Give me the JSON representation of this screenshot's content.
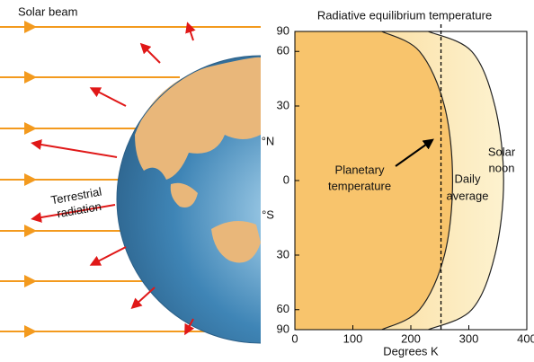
{
  "left": {
    "solar_beam": "Solar beam",
    "terrestrial_radiation": [
      "Terrestrial",
      "radiation"
    ]
  },
  "chart_data": {
    "type": "area",
    "title": "Radiative equilibrium temperature",
    "xlabel": "Degrees K",
    "north_label": "°N",
    "south_label": "°S",
    "yscale": "sine",
    "latitude": [
      90,
      60,
      30,
      0,
      -30,
      -60,
      -90
    ],
    "xlim": [
      0,
      400
    ],
    "xticks": [
      0,
      100,
      200,
      300,
      400
    ],
    "ylim": [
      -90,
      90
    ],
    "yticks": [
      90,
      60,
      30,
      0,
      {
        "value": -30,
        "label": "30"
      },
      {
        "value": -60,
        "label": "60"
      },
      {
        "value": -90,
        "label": "90"
      }
    ],
    "series": [
      {
        "label_lines": [
          "Solar",
          "noon"
        ],
        "color": "#fbe3a6",
        "values": [
          230,
          305,
          345,
          360,
          345,
          305,
          230
        ]
      },
      {
        "label_lines": [
          "Planetary",
          "temperature"
        ],
        "color": "#f8c46c",
        "values": [
          150,
          215,
          258,
          272,
          258,
          215,
          150
        ]
      }
    ],
    "daily_average": {
      "value": 252,
      "label_lines": [
        "Daily",
        "average"
      ]
    }
  }
}
